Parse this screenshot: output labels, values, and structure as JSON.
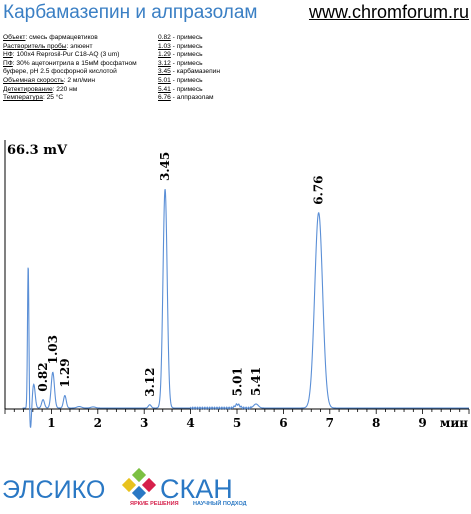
{
  "header": {
    "title": "Карбамазепин и алпразолам",
    "site": "www.chromforum.ru"
  },
  "conditions": [
    {
      "key": "Объект",
      "value": ": смесь фармацевтиков"
    },
    {
      "key": "Растворитель пробы",
      "value": ": элюент"
    },
    {
      "key": "НФ",
      "value": ": 100x4 Reprosil-Pur C18-AQ  (3 um)"
    },
    {
      "key": "ПФ",
      "value": ": 30% ацетонитрила в 15мМ фосфатном"
    },
    {
      "key": "",
      "value": "буфере, pH 2.5 фосфорной кислотой"
    },
    {
      "key": "Объемная скорость",
      "value": ": 2 мл/мин"
    },
    {
      "key": "Детектирование",
      "value": ": 220 нм"
    },
    {
      "key": "Температура",
      "value": ": 25 °C"
    }
  ],
  "peak_table": [
    {
      "time": "0.82",
      "name": " - примесь"
    },
    {
      "time": "1.03",
      "name": " - примесь"
    },
    {
      "time": "1.29",
      "name": " - примесь"
    },
    {
      "time": "3.12",
      "name": " - примесь"
    },
    {
      "time": "3.45",
      "name": " - карбамазепин"
    },
    {
      "time": "5.01",
      "name": " - примесь"
    },
    {
      "time": "5.41",
      "name": " - примесь"
    },
    {
      "time": "6.76",
      "name": " - алпразолам"
    }
  ],
  "chart_data": {
    "type": "line",
    "y_max_label": "66.3 mV",
    "xlabel": "мин",
    "xlim": [
      0.0,
      10.0
    ],
    "ylim": [
      0,
      66.3
    ],
    "x_ticks": [
      "1",
      "2",
      "3",
      "4",
      "5",
      "6",
      "7",
      "8",
      "9"
    ],
    "line_color": "#5b8fd6",
    "peaks": [
      {
        "time": 0.5,
        "height": 39.5,
        "width": 0.015,
        "labeled": false
      },
      {
        "time": 0.55,
        "height": -6.0,
        "width": 0.02,
        "labeled": false
      },
      {
        "time": 0.62,
        "height": 6.5,
        "width": 0.03,
        "labeled": false
      },
      {
        "time": 0.82,
        "height": 2.3,
        "width": 0.03,
        "labeled": true,
        "label": "0.82"
      },
      {
        "time": 1.03,
        "height": 9.8,
        "width": 0.035,
        "labeled": true,
        "label": "1.03"
      },
      {
        "time": 1.29,
        "height": 3.4,
        "width": 0.03,
        "labeled": true,
        "label": "1.29"
      },
      {
        "time": 1.6,
        "height": 0.4,
        "width": 0.05,
        "labeled": false
      },
      {
        "time": 1.9,
        "height": 0.3,
        "width": 0.05,
        "labeled": false
      },
      {
        "time": 3.12,
        "height": 0.9,
        "width": 0.03,
        "labeled": true,
        "label": "3.12"
      },
      {
        "time": 3.45,
        "height": 60.0,
        "width": 0.045,
        "labeled": true,
        "label": "3.45"
      },
      {
        "time": 5.01,
        "height": 1.0,
        "width": 0.05,
        "labeled": true,
        "label": "5.01"
      },
      {
        "time": 5.41,
        "height": 1.1,
        "width": 0.05,
        "labeled": true,
        "label": "5.41"
      },
      {
        "time": 6.76,
        "height": 53.5,
        "width": 0.085,
        "labeled": true,
        "label": "6.76"
      }
    ]
  },
  "logo": {
    "left": "ЭЛСИКО",
    "right": "СКАН",
    "tag_red": "ЯРКИЕ РЕШЕНИЯ",
    "tag_blue": "НАУЧНЫЙ ПОДХОД"
  }
}
